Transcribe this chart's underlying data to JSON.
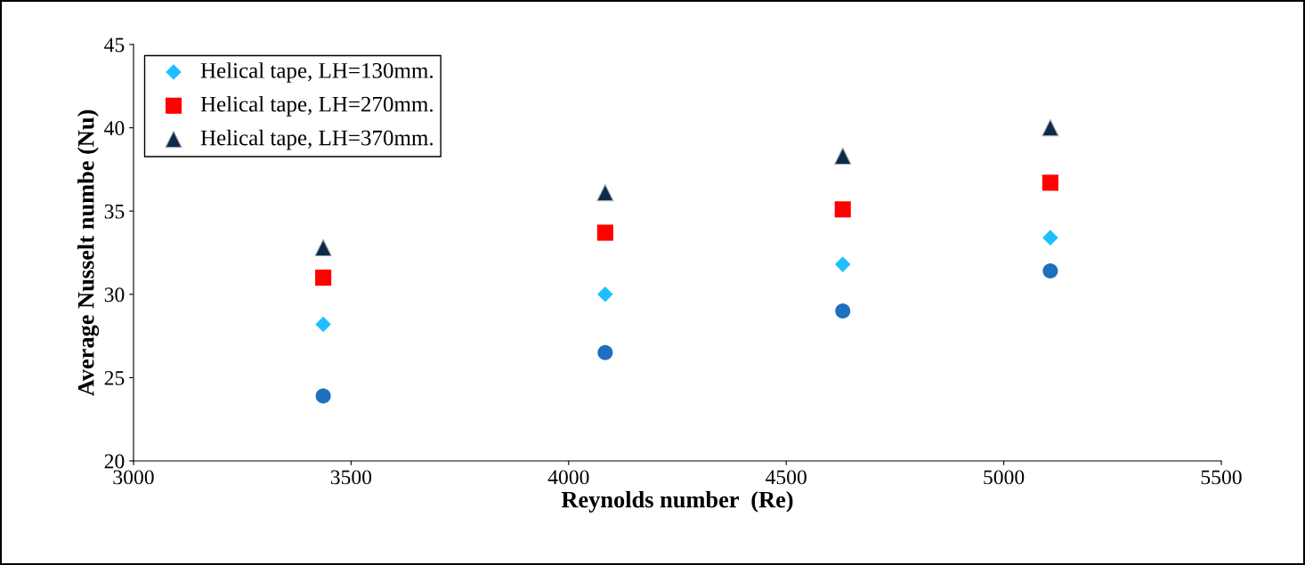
{
  "chart_data": {
    "type": "scatter",
    "xlabel": "Reynolds number  (Re)",
    "ylabel": "Average Nusselt numbe (Nu)",
    "x": [
      3436,
      4084,
      4630,
      5107
    ],
    "series": [
      {
        "color": "#1f6fbf",
        "marker": "circle",
        "values": [
          23.9,
          26.5,
          29.0,
          31.4
        ]
      },
      {
        "name": "Helical tape, LH=130mm.",
        "color": "#1fbfff",
        "marker": "diamond",
        "values": [
          28.2,
          30.0,
          31.8,
          33.4
        ]
      },
      {
        "name": "Helical tape, LH=270mm.",
        "color": "#ff0000",
        "marker": "square",
        "values": [
          31.0,
          33.7,
          35.1,
          36.7
        ]
      },
      {
        "name": "Helical tape, LH=370mm.",
        "color": "#0d2a4a",
        "marker": "triangle",
        "values": [
          32.8,
          36.1,
          38.3,
          40.0
        ]
      }
    ],
    "xlim": [
      3000,
      5500
    ],
    "xticks": [
      3000,
      3500,
      4000,
      4500,
      5000,
      5500
    ],
    "ylim": [
      20,
      45
    ],
    "yticks": [
      20,
      25,
      30,
      35,
      40,
      45
    ],
    "grid": false,
    "legend": "top left"
  }
}
